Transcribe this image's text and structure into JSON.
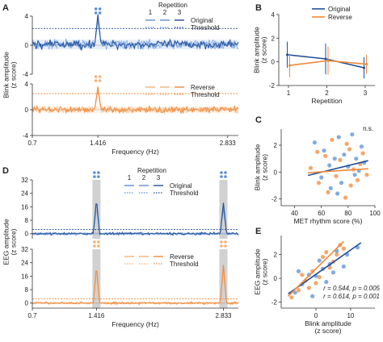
{
  "colors": {
    "original": "#1f4e9a",
    "original_light": "#5b8fd6",
    "reverse": "#f08a3a",
    "reverse_light": "#f6b27a",
    "grey_band": "#bdbdbd"
  },
  "panel_labels": [
    "A",
    "B",
    "C",
    "D",
    "E"
  ],
  "chart_data": [
    {
      "id": "A-top",
      "type": "line",
      "ylabel": "Blink amplitude\n(z score)",
      "ylim": [
        -4,
        4
      ],
      "yticks": [
        -4,
        0,
        4
      ],
      "x_range": [
        0.7,
        2.95
      ],
      "peak_frequency": 1.416,
      "peak_value": 3.9,
      "threshold": 2.3,
      "baseline_mean": 0.1,
      "legend": {
        "title": "Repetition",
        "numbers": [
          "1",
          "2",
          "3"
        ],
        "entries": [
          "Original",
          "Threshold"
        ]
      },
      "series": [
        {
          "name": "Original",
          "color": "original"
        }
      ]
    },
    {
      "id": "A-bottom",
      "type": "line",
      "ylim": [
        -4,
        4
      ],
      "yticks": [
        -4,
        0,
        4
      ],
      "x_range": [
        0.7,
        2.95
      ],
      "xticks": [
        "0.7",
        "1.416",
        "2.833"
      ],
      "xlabel": "Frequency (Hz)",
      "peak_frequency": 1.416,
      "peak_value": 3.3,
      "threshold": 2.5,
      "baseline_mean": 0.0,
      "legend": {
        "entries": [
          "Reverse",
          "Threshold"
        ]
      },
      "series": [
        {
          "name": "Reverse",
          "color": "reverse"
        }
      ]
    },
    {
      "id": "B",
      "type": "line",
      "ylabel": "Blink amplitude\n(z score)",
      "xlabel": "Repetition",
      "ylim": [
        -2,
        4
      ],
      "yticks": [
        -2,
        0,
        2,
        4
      ],
      "categories": [
        "1",
        "2",
        "3"
      ],
      "legend": [
        "Original",
        "Reverse"
      ],
      "series": [
        {
          "name": "Original",
          "values": [
            0.6,
            0.25,
            -0.5
          ],
          "err": [
            1.1,
            1.3,
            0.9
          ]
        },
        {
          "name": "Reverse",
          "values": [
            -0.3,
            0.1,
            -0.2
          ],
          "err": [
            1.0,
            1.2,
            0.8
          ]
        }
      ]
    },
    {
      "id": "C",
      "type": "scatter",
      "ylabel": "Blink amplitude\n(z score)",
      "xlabel": "MET rhythm score (%)",
      "xlim": [
        30,
        100
      ],
      "ylim": [
        -2.5,
        3.2
      ],
      "xticks": [
        40,
        60,
        80,
        100
      ],
      "yticks": [
        -2,
        0,
        2
      ],
      "annotation": "n.s.",
      "original_points": [
        [
          55,
          2.2
        ],
        [
          62,
          1.6
        ],
        [
          70,
          1.0
        ],
        [
          73,
          2.6
        ],
        [
          80,
          0.4
        ],
        [
          85,
          -0.2
        ],
        [
          90,
          1.9
        ],
        [
          67,
          -1.2
        ],
        [
          77,
          1.3
        ],
        [
          83,
          2.8
        ],
        [
          88,
          0.1
        ],
        [
          60,
          -0.4
        ],
        [
          75,
          -0.8
        ],
        [
          92,
          0.7
        ],
        [
          66,
          0.5
        ],
        [
          72,
          -1.6
        ],
        [
          86,
          1.0
        ]
      ],
      "reverse_points": [
        [
          52,
          0.3
        ],
        [
          58,
          -0.8
        ],
        [
          63,
          1.2
        ],
        [
          68,
          2.4
        ],
        [
          71,
          -0.3
        ],
        [
          74,
          0.9
        ],
        [
          78,
          -1.9
        ],
        [
          81,
          1.7
        ],
        [
          84,
          0.2
        ],
        [
          87,
          -0.6
        ],
        [
          91,
          1.4
        ],
        [
          65,
          -1.5
        ],
        [
          79,
          2.1
        ],
        [
          82,
          -1.0
        ],
        [
          89,
          0.6
        ],
        [
          57,
          1.5
        ],
        [
          94,
          -0.2
        ]
      ],
      "fit_original": [
        [
          50,
          -0.25
        ],
        [
          95,
          0.85
        ]
      ],
      "fit_reverse": [
        [
          50,
          -0.05
        ],
        [
          95,
          0.25
        ]
      ]
    },
    {
      "id": "D-top",
      "type": "line",
      "ylabel": "EEG amplitude\n(z score)",
      "ylim": [
        -3,
        32
      ],
      "yticks": [
        0,
        8,
        16,
        24,
        32
      ],
      "x_range": [
        0.7,
        3.0
      ],
      "peaks": [
        [
          1.416,
          19.0
        ],
        [
          2.833,
          17.0
        ]
      ],
      "threshold": 2.5,
      "legend": {
        "title": "Repetition",
        "numbers": [
          "1",
          "2",
          "3"
        ],
        "entries": [
          "Original",
          "Threshold"
        ]
      },
      "series": [
        {
          "name": "Original",
          "color": "original"
        }
      ]
    },
    {
      "id": "D-bottom",
      "type": "line",
      "ylim": [
        -3,
        32
      ],
      "yticks": [
        0,
        8,
        16,
        24,
        32
      ],
      "x_range": [
        0.7,
        3.0
      ],
      "xticks": [
        "0.7",
        "1.416",
        "2.833"
      ],
      "xlabel": "Frequency (Hz)",
      "peaks": [
        [
          1.416,
          20.5
        ],
        [
          2.833,
          21.0
        ]
      ],
      "threshold": 2.5,
      "legend": {
        "entries": [
          "Reverse",
          "Threshold"
        ]
      },
      "series": [
        {
          "name": "Reverse",
          "color": "reverse"
        }
      ]
    },
    {
      "id": "E",
      "type": "scatter",
      "ylabel": "EEG amplitude\n(z score)",
      "xlabel": "Blink amplitude\n(z score)",
      "xlim": [
        -10,
        17
      ],
      "ylim": [
        -2.5,
        3.6
      ],
      "xticks": [
        0,
        10
      ],
      "yticks": [
        -2,
        0,
        2
      ],
      "original_points": [
        [
          -6,
          -1.2
        ],
        [
          -4,
          -0.5
        ],
        [
          -2,
          0.3
        ],
        [
          0,
          0.2
        ],
        [
          2,
          0.8
        ],
        [
          4,
          1.2
        ],
        [
          6,
          2.3
        ],
        [
          8,
          1.0
        ],
        [
          12,
          2.6
        ],
        [
          -1,
          -1.5
        ],
        [
          3,
          -0.3
        ],
        [
          5,
          0.5
        ],
        [
          -5,
          0.6
        ],
        [
          1,
          1.5
        ],
        [
          9,
          2.0
        ]
      ],
      "reverse_points": [
        [
          -7,
          -1.6
        ],
        [
          -5,
          -1.0
        ],
        [
          -3,
          -0.2
        ],
        [
          -1,
          0.6
        ],
        [
          1,
          0.1
        ],
        [
          2,
          1.8
        ],
        [
          3,
          2.2
        ],
        [
          5,
          1.4
        ],
        [
          7,
          2.8
        ],
        [
          -2,
          -0.8
        ],
        [
          0,
          -0.4
        ],
        [
          4,
          0.9
        ],
        [
          6,
          2.0
        ],
        [
          -4,
          0.3
        ],
        [
          8,
          2.5
        ]
      ],
      "fit_original": [
        [
          -8,
          -1.3
        ],
        [
          13,
          3.0
        ]
      ],
      "fit_reverse": [
        [
          -8,
          -1.5
        ],
        [
          8,
          3.1
        ]
      ],
      "stats": [
        {
          "label": "r = 0.544, p = 0.005",
          "color": "original"
        },
        {
          "label": "r = 0.614, p = 0.001",
          "color": "reverse"
        }
      ]
    }
  ]
}
